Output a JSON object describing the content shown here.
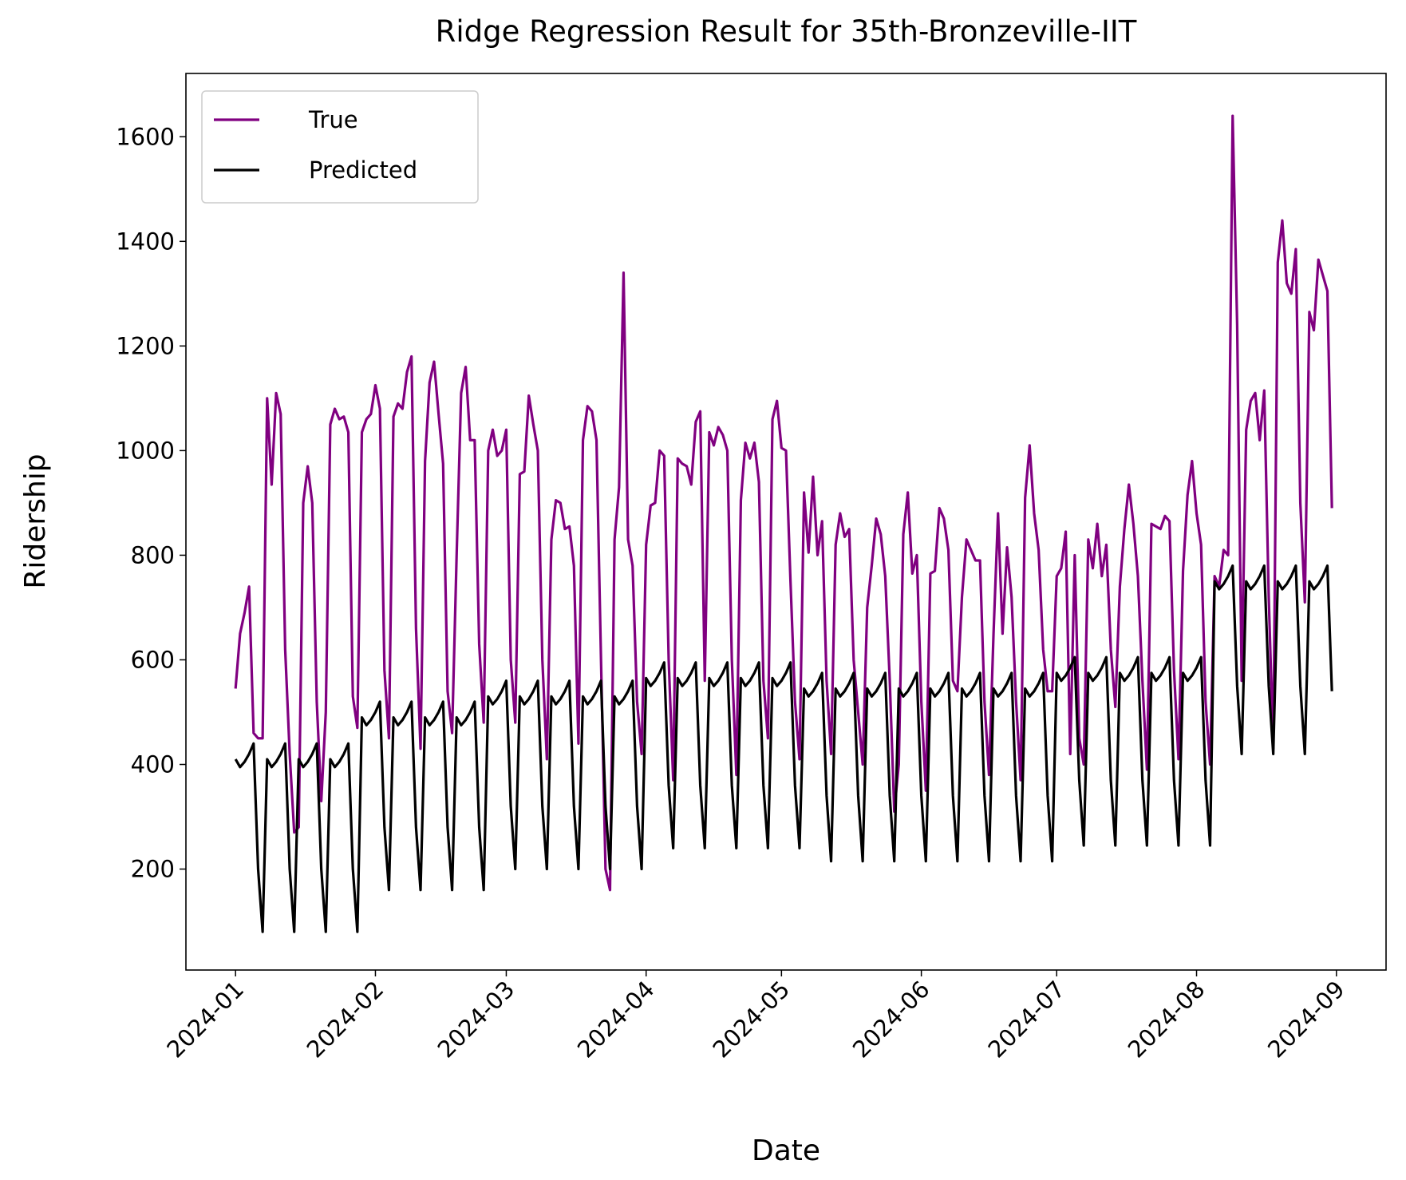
{
  "chart_data": {
    "type": "line",
    "title": "Ridge Regression Result for 35th-Bronzeville-IIT",
    "x_label": "Date",
    "y_label": "Ridership",
    "xlim": [
      "2023-12-21",
      "2024-09-12"
    ],
    "ylim": [
      7,
      1721
    ],
    "yticks": [
      200,
      400,
      600,
      800,
      1000,
      1200,
      1400,
      1600
    ],
    "xticks": [
      {
        "value": "2024-01-01",
        "label": "2024-01"
      },
      {
        "value": "2024-02-01",
        "label": "2024-02"
      },
      {
        "value": "2024-03-01",
        "label": "2024-03"
      },
      {
        "value": "2024-04-01",
        "label": "2024-04"
      },
      {
        "value": "2024-05-01",
        "label": "2024-05"
      },
      {
        "value": "2024-06-01",
        "label": "2024-06"
      },
      {
        "value": "2024-07-01",
        "label": "2024-07"
      },
      {
        "value": "2024-08-01",
        "label": "2024-08"
      },
      {
        "value": "2024-09-01",
        "label": "2024-09"
      }
    ],
    "legend": "upper left",
    "x_start": "2024-01-01",
    "series": [
      {
        "name": "True",
        "color": "#800080",
        "values": [
          545,
          650,
          690,
          740,
          460,
          450,
          450,
          1100,
          935,
          1110,
          1070,
          620,
          420,
          270,
          280,
          900,
          970,
          900,
          520,
          330,
          500,
          1050,
          1080,
          1060,
          1065,
          1035,
          530,
          470,
          1035,
          1060,
          1070,
          1125,
          1080,
          580,
          450,
          1065,
          1090,
          1080,
          1150,
          1180,
          660,
          430,
          980,
          1130,
          1170,
          1070,
          975,
          540,
          460,
          800,
          1110,
          1160,
          1020,
          1020,
          630,
          480,
          1000,
          1040,
          990,
          1000,
          1040,
          600,
          480,
          955,
          960,
          1105,
          1050,
          1000,
          600,
          410,
          830,
          905,
          900,
          850,
          855,
          780,
          440,
          1020,
          1085,
          1075,
          1020,
          600,
          200,
          160,
          830,
          930,
          1340,
          830,
          780,
          520,
          420,
          820,
          895,
          900,
          1000,
          990,
          600,
          370,
          985,
          975,
          970,
          935,
          1055,
          1075,
          560,
          1035,
          1010,
          1045,
          1030,
          1000,
          600,
          380,
          905,
          1015,
          985,
          1015,
          940,
          560,
          450,
          1060,
          1095,
          1005,
          1000,
          750,
          520,
          410,
          920,
          805,
          950,
          800,
          865,
          560,
          420,
          820,
          880,
          835,
          850,
          600,
          500,
          400,
          700,
          780,
          870,
          840,
          760,
          560,
          310,
          400,
          840,
          920,
          765,
          800,
          520,
          350,
          765,
          770,
          890,
          870,
          810,
          560,
          540,
          720,
          830,
          810,
          790,
          790,
          520,
          380,
          650,
          880,
          650,
          815,
          720,
          520,
          370,
          910,
          1010,
          880,
          810,
          620,
          540,
          540,
          760,
          775,
          845,
          420,
          800,
          450,
          400,
          830,
          775,
          860,
          760,
          820,
          620,
          510,
          740,
          850,
          935,
          860,
          760,
          560,
          390,
          860,
          855,
          850,
          875,
          865,
          580,
          410,
          770,
          915,
          980,
          880,
          820,
          520,
          400,
          760,
          740,
          810,
          800,
          1640,
          1240,
          560,
          1040,
          1095,
          1110,
          1020,
          1115,
          720,
          430,
          1360,
          1440,
          1320,
          1300,
          1385,
          900,
          710,
          1265,
          1230,
          1365,
          1335,
          1305,
          890
        ]
      },
      {
        "name": "Predicted",
        "color": "#000000",
        "values": [
          410,
          395,
          405,
          420,
          440,
          200,
          80,
          410,
          395,
          405,
          420,
          440,
          200,
          80,
          410,
          395,
          405,
          420,
          440,
          200,
          80,
          410,
          395,
          405,
          420,
          440,
          200,
          80,
          490,
          475,
          485,
          500,
          520,
          280,
          160,
          490,
          475,
          485,
          500,
          520,
          280,
          160,
          490,
          475,
          485,
          500,
          520,
          280,
          160,
          490,
          475,
          485,
          500,
          520,
          280,
          160,
          530,
          515,
          525,
          540,
          560,
          320,
          200,
          530,
          515,
          525,
          540,
          560,
          320,
          200,
          530,
          515,
          525,
          540,
          560,
          320,
          200,
          530,
          515,
          525,
          540,
          560,
          320,
          200,
          530,
          515,
          525,
          540,
          560,
          320,
          200,
          565,
          550,
          560,
          575,
          595,
          360,
          240,
          565,
          550,
          560,
          575,
          595,
          360,
          240,
          565,
          550,
          560,
          575,
          595,
          360,
          240,
          565,
          550,
          560,
          575,
          595,
          360,
          240,
          565,
          550,
          560,
          575,
          595,
          360,
          240,
          545,
          530,
          540,
          555,
          575,
          340,
          215,
          545,
          530,
          540,
          555,
          575,
          340,
          215,
          545,
          530,
          540,
          555,
          575,
          340,
          215,
          545,
          530,
          540,
          555,
          575,
          340,
          215,
          545,
          530,
          540,
          555,
          575,
          340,
          215,
          545,
          530,
          540,
          555,
          575,
          340,
          215,
          545,
          530,
          540,
          555,
          575,
          340,
          215,
          545,
          530,
          540,
          555,
          575,
          340,
          215,
          575,
          560,
          570,
          585,
          605,
          370,
          245,
          575,
          560,
          570,
          585,
          605,
          370,
          245,
          575,
          560,
          570,
          585,
          605,
          370,
          245,
          575,
          560,
          570,
          585,
          605,
          370,
          245,
          575,
          560,
          570,
          585,
          605,
          370,
          245,
          750,
          735,
          745,
          760,
          780,
          550,
          420,
          750,
          735,
          745,
          760,
          780,
          550,
          420,
          750,
          735,
          745,
          760,
          780,
          550,
          420,
          750,
          735,
          745,
          760,
          780,
          540
        ]
      }
    ]
  }
}
